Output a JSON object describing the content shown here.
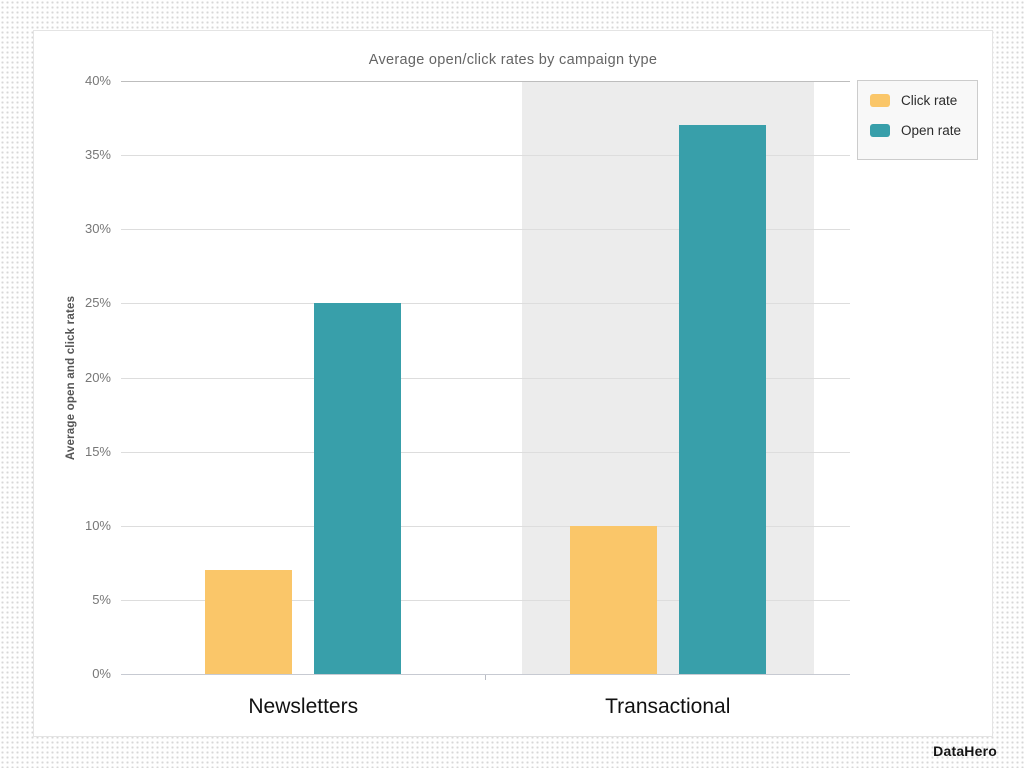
{
  "page": {
    "brand_logo": "DataHero"
  },
  "chart_data": {
    "type": "bar",
    "title": "Average open/click rates by campaign type",
    "categories": [
      "Newsletters",
      "Transactional"
    ],
    "series": [
      {
        "name": "Click rate",
        "color": "#FAC669",
        "values": [
          7,
          10
        ]
      },
      {
        "name": "Open rate",
        "color": "#389FAA",
        "values": [
          25,
          37
        ]
      }
    ],
    "xlabel": "",
    "ylabel": "Average open and click rates",
    "ylim": [
      0,
      40
    ],
    "ytick_step": 5,
    "ytick_suffix": "%",
    "grid": true,
    "legend_position": "top-right",
    "legend_entries": [
      "Click rate",
      "Open rate"
    ],
    "highlighted_category": "Transactional",
    "highlight_color": "#ECECEC"
  }
}
